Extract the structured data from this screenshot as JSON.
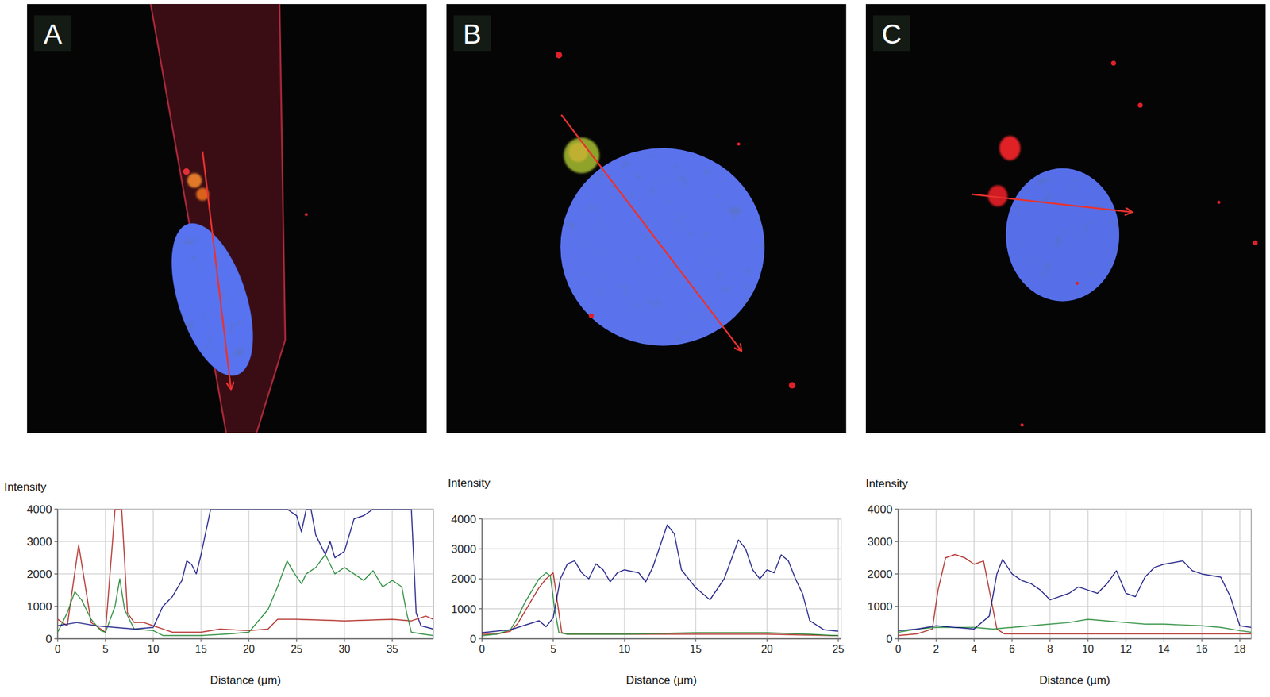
{
  "chart_data": [
    {
      "type": "line",
      "title": "A",
      "x_label": "Distance (µm)",
      "y_label": "Intensity",
      "xlim": [
        0,
        39.3
      ],
      "ylim": [
        0,
        4000
      ],
      "xticks": [
        0,
        5,
        10,
        15,
        20,
        25,
        30,
        35
      ],
      "yticks": [
        0,
        1000,
        2000,
        3000,
        4000
      ],
      "grid": true,
      "series": [
        {
          "color": "#b3302b",
          "x": [
            0,
            1,
            2.2,
            3.5,
            4.5,
            5,
            6,
            6.7,
            7.3,
            8,
            9,
            10,
            11,
            12,
            15,
            17,
            20,
            22,
            23,
            25,
            30,
            35,
            37,
            38.5,
            39.3
          ],
          "values": [
            600,
            400,
            2900,
            500,
            300,
            200,
            4000,
            4000,
            800,
            500,
            500,
            400,
            300,
            200,
            200,
            300,
            250,
            300,
            600,
            600,
            550,
            600,
            550,
            700,
            600
          ]
        },
        {
          "color": "#2f8f3f",
          "x": [
            0,
            1,
            1.8,
            2.5,
            3.5,
            4.5,
            5,
            6,
            6.5,
            7,
            8,
            10,
            11,
            12,
            15,
            18,
            20,
            22,
            23,
            24,
            24.8,
            25.5,
            26,
            27,
            28,
            28.5,
            29,
            30,
            31,
            32,
            33,
            34,
            35,
            36,
            36.5,
            37,
            38,
            39.3
          ],
          "values": [
            200,
            800,
            1450,
            1200,
            600,
            250,
            200,
            1000,
            1850,
            900,
            300,
            250,
            100,
            100,
            100,
            150,
            200,
            900,
            1600,
            2400,
            2000,
            1700,
            2000,
            2200,
            2600,
            2300,
            2000,
            2200,
            2000,
            1800,
            2100,
            1600,
            1800,
            1600,
            800,
            200,
            150,
            100
          ]
        },
        {
          "color": "#23238a",
          "x": [
            0,
            2,
            4,
            6,
            8,
            10,
            11,
            12,
            13,
            13.5,
            14,
            14.5,
            15,
            16,
            17,
            20,
            23,
            24,
            25,
            25.5,
            26,
            26.5,
            27,
            28,
            28.5,
            29,
            30,
            31,
            32,
            33,
            35,
            36,
            37,
            37.5,
            38,
            39.3
          ],
          "values": [
            400,
            500,
            400,
            350,
            300,
            350,
            1000,
            1300,
            1800,
            2400,
            2300,
            2000,
            2600,
            4000,
            4000,
            4000,
            4000,
            4000,
            3800,
            3300,
            4000,
            4000,
            3200,
            2600,
            3000,
            2500,
            2700,
            3700,
            3800,
            4000,
            4000,
            4000,
            4000,
            800,
            400,
            300
          ]
        }
      ]
    },
    {
      "type": "line",
      "title": "B",
      "x_label": "Distance (µm)",
      "y_label": "Intensity",
      "xlim": [
        0,
        25.2
      ],
      "ylim": [
        0,
        4000
      ],
      "xticks": [
        0,
        5,
        10,
        15,
        20,
        25
      ],
      "yticks": [
        0,
        1000,
        2000,
        3000,
        4000
      ],
      "grid": true,
      "series": [
        {
          "color": "#b3302b",
          "x": [
            0,
            1,
            2,
            2.5,
            3,
            3.5,
            4,
            4.5,
            5,
            5.3,
            5.6,
            6,
            10,
            15,
            20,
            25
          ],
          "values": [
            150,
            150,
            250,
            500,
            900,
            1300,
            1700,
            2000,
            2200,
            1200,
            200,
            150,
            150,
            150,
            150,
            100
          ]
        },
        {
          "color": "#2f8f3f",
          "x": [
            0,
            1,
            2,
            2.5,
            3,
            3.5,
            4,
            4.5,
            4.8,
            5.1,
            5.4,
            6,
            10,
            15,
            20,
            23,
            25
          ],
          "values": [
            100,
            150,
            300,
            700,
            1200,
            1600,
            2000,
            2200,
            2100,
            1000,
            200,
            150,
            150,
            200,
            200,
            150,
            100
          ]
        },
        {
          "color": "#23238a",
          "x": [
            0,
            2,
            3,
            4,
            4.5,
            5,
            5.5,
            6,
            6.5,
            7,
            7.5,
            8,
            8.5,
            9,
            9.5,
            10,
            11,
            11.5,
            12,
            13,
            13.5,
            14,
            15,
            16,
            17,
            18,
            18.5,
            19,
            19.5,
            20,
            20.5,
            21,
            21.5,
            22,
            22.5,
            23,
            24,
            25
          ],
          "values": [
            200,
            300,
            450,
            600,
            400,
            700,
            2000,
            2500,
            2600,
            2200,
            2000,
            2500,
            2300,
            1900,
            2200,
            2300,
            2200,
            1900,
            2400,
            3800,
            3500,
            2300,
            1700,
            1300,
            2000,
            3300,
            3000,
            2300,
            2000,
            2300,
            2200,
            2800,
            2600,
            2000,
            1500,
            600,
            300,
            250
          ]
        }
      ]
    },
    {
      "type": "line",
      "title": "C",
      "x_label": "Distance (µm)",
      "y_label": "Intensity",
      "xlim": [
        0,
        18.6
      ],
      "ylim": [
        0,
        4000
      ],
      "xticks": [
        0,
        2,
        4,
        6,
        8,
        10,
        12,
        14,
        16,
        18
      ],
      "yticks": [
        0,
        1000,
        2000,
        3000,
        4000
      ],
      "grid": true,
      "series": [
        {
          "color": "#b3302b",
          "x": [
            0,
            1,
            1.8,
            2.1,
            2.5,
            3,
            3.5,
            4,
            4.5,
            4.8,
            5.2,
            5.6,
            6,
            10,
            14,
            18,
            18.6
          ],
          "values": [
            100,
            150,
            300,
            1500,
            2500,
            2600,
            2500,
            2300,
            2400,
            1500,
            300,
            150,
            150,
            150,
            150,
            150,
            150
          ]
        },
        {
          "color": "#2f8f3f",
          "x": [
            0,
            1,
            2,
            3,
            4,
            5,
            6,
            7,
            8,
            9,
            10,
            11,
            12,
            13,
            14,
            16,
            17,
            18,
            18.6
          ],
          "values": [
            200,
            300,
            350,
            350,
            350,
            300,
            350,
            400,
            450,
            500,
            600,
            550,
            500,
            450,
            450,
            400,
            350,
            250,
            200
          ]
        },
        {
          "color": "#23238a",
          "x": [
            0,
            1,
            2,
            3,
            4,
            4.8,
            5.2,
            5.5,
            6,
            6.5,
            7,
            7.5,
            8,
            9,
            9.5,
            10,
            10.5,
            11,
            11.5,
            12,
            12.5,
            13,
            13.5,
            14,
            15,
            15.5,
            16,
            17,
            17.5,
            18,
            18.6
          ],
          "values": [
            250,
            300,
            400,
            350,
            300,
            700,
            2000,
            2450,
            2000,
            1800,
            1700,
            1500,
            1200,
            1400,
            1600,
            1500,
            1400,
            1700,
            2100,
            1400,
            1300,
            1900,
            2200,
            2300,
            2400,
            2100,
            2000,
            1900,
            1300,
            400,
            350
          ]
        }
      ]
    }
  ]
}
